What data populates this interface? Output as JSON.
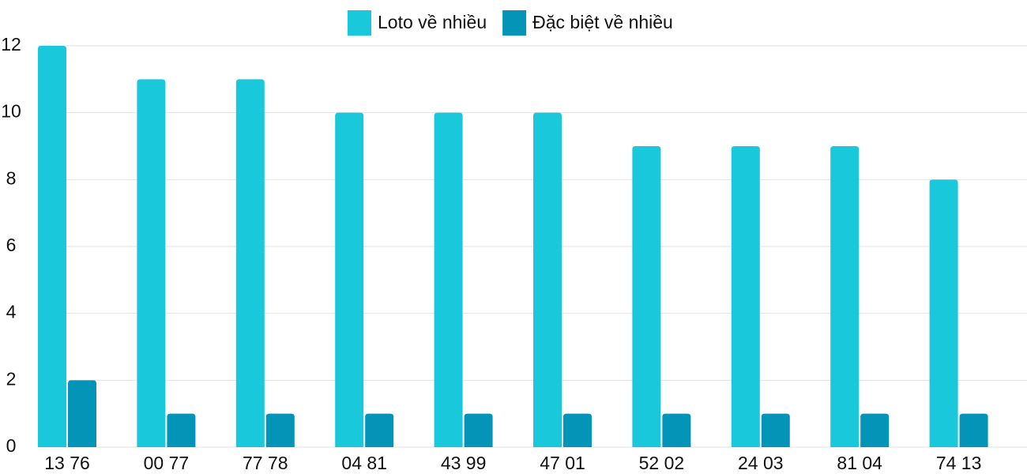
{
  "chart_data": {
    "type": "bar",
    "categories": [
      "13 76",
      "00 77",
      "77 78",
      "04 81",
      "43 99",
      "47 01",
      "52 02",
      "24 03",
      "81 04",
      "74 13"
    ],
    "series": [
      {
        "name": "Loto về nhiều",
        "color": "#1ac8db",
        "values": [
          12,
          11,
          11,
          10,
          10,
          10,
          9,
          9,
          9,
          8
        ]
      },
      {
        "name": "Đặc biệt về nhiều",
        "color": "#0494b8",
        "values": [
          2,
          1,
          1,
          1,
          1,
          1,
          1,
          1,
          1,
          1
        ]
      }
    ],
    "ylim": [
      0,
      12
    ],
    "yticks": [
      0,
      2,
      4,
      6,
      8,
      10,
      12
    ],
    "grid": true,
    "legend": "top"
  }
}
